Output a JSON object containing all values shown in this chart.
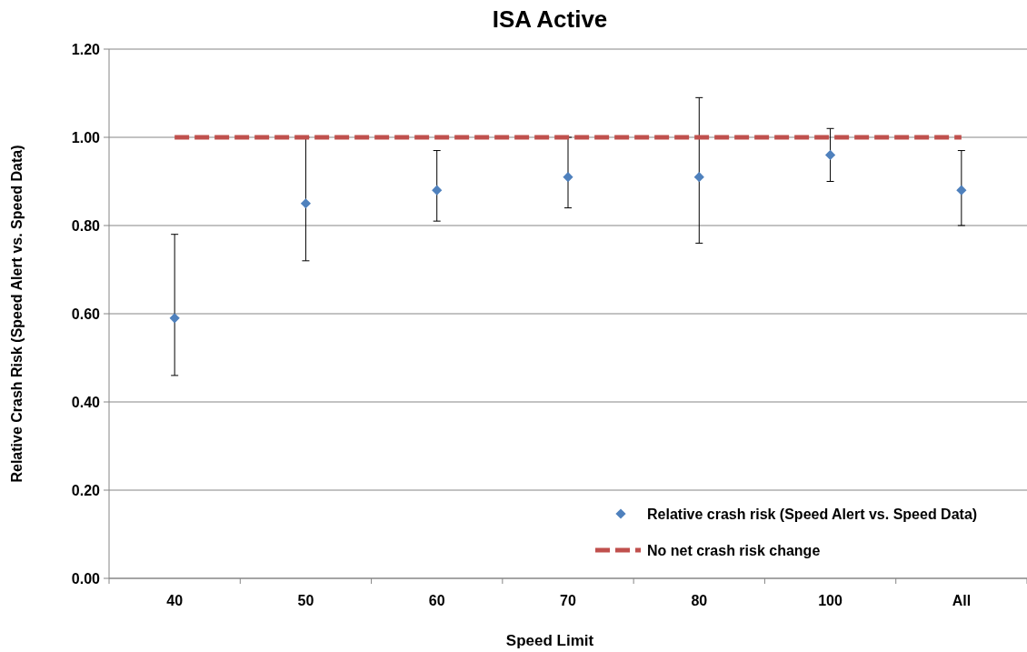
{
  "chart_data": {
    "type": "scatter",
    "title": "ISA Active",
    "xlabel": "Speed Limit",
    "ylabel": "Relative Crash Risk (Speed Alert vs. Speed Data)",
    "categories": [
      "40",
      "50",
      "60",
      "70",
      "80",
      "100",
      "All"
    ],
    "ylim": [
      0,
      1.2
    ],
    "yticks": [
      {
        "value": 0,
        "label": "0.00"
      },
      {
        "value": 0.2,
        "label": "0.20"
      },
      {
        "value": 0.4,
        "label": "0.40"
      },
      {
        "value": 0.6,
        "label": "0.60"
      },
      {
        "value": 0.8,
        "label": "0.80"
      },
      {
        "value": 1,
        "label": "1.00"
      },
      {
        "value": 1.2,
        "label": "1.20"
      }
    ],
    "grid": "y",
    "legend": "bottom right",
    "series": [
      {
        "name": "Relative crash risk (Speed Alert vs. Speed Data)",
        "color": "#4f81bd",
        "marker": "diamond",
        "values": [
          0.59,
          0.85,
          0.88,
          0.91,
          0.91,
          0.96,
          0.88
        ],
        "errors": [
          [
            0.46,
            0.78
          ],
          [
            0.72,
            1.0
          ],
          [
            0.81,
            0.97
          ],
          [
            0.84,
            1.0
          ],
          [
            0.76,
            1.09
          ],
          [
            0.9,
            1.02
          ],
          [
            0.8,
            0.97
          ]
        ]
      },
      {
        "name": "No net crash risk change",
        "type": "line",
        "color": "#c0504d",
        "line_style": "dashed",
        "marker": "none",
        "values": [
          1,
          1,
          1,
          1,
          1,
          1,
          1
        ]
      }
    ]
  }
}
